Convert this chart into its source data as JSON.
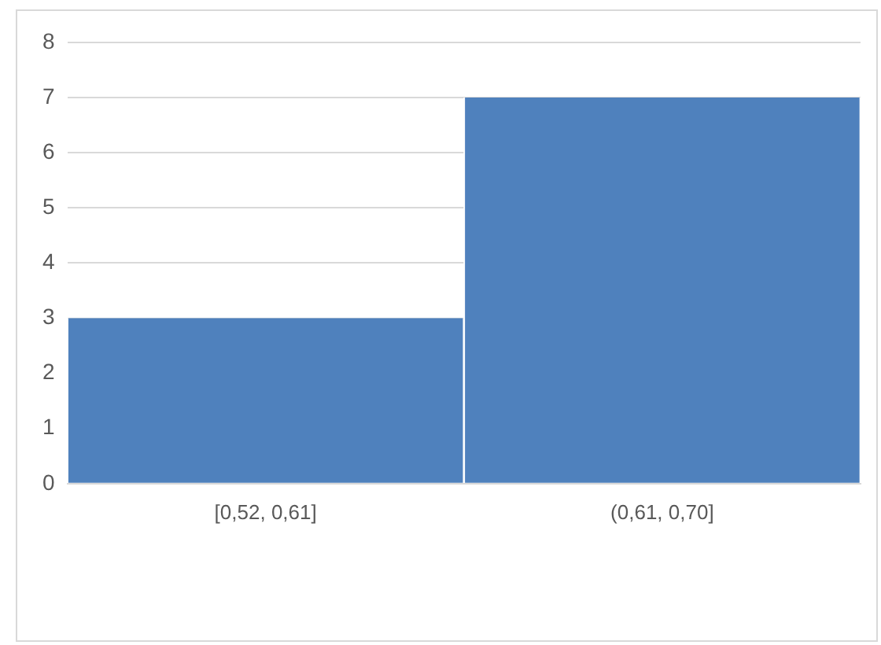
{
  "chart_data": {
    "type": "bar",
    "categories": [
      "[0,52, 0,61]",
      "(0,61, 0,70]"
    ],
    "series": [
      {
        "color": "#4f81bd",
        "values": [
          3,
          7
        ]
      }
    ],
    "ylim": [
      0,
      8
    ],
    "yticks": [
      0,
      1,
      2,
      3,
      4,
      5,
      6,
      7,
      8
    ],
    "grid": "y"
  }
}
